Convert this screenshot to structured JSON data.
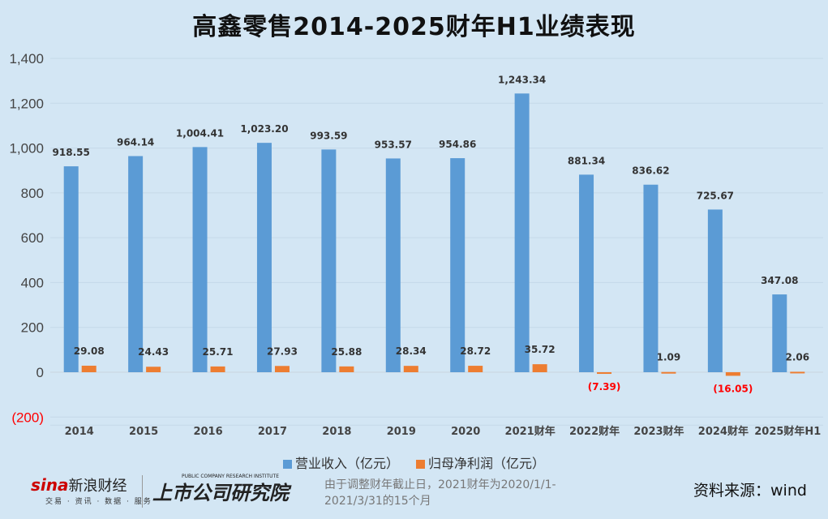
{
  "chart_data": {
    "type": "bar",
    "title": "高鑫零售2014-2025财年H1业绩表现",
    "categories": [
      "2014",
      "2015",
      "2016",
      "2017",
      "2018",
      "2019",
      "2020",
      "2021财年",
      "2022财年",
      "2023财年",
      "2024财年",
      "2025财年H1"
    ],
    "series": [
      {
        "name": "营业收入（亿元）",
        "color": "#5b9bd5",
        "values": [
          918.55,
          964.14,
          1004.41,
          1023.2,
          993.59,
          953.57,
          954.86,
          1243.34,
          881.34,
          836.62,
          725.67,
          347.08
        ],
        "labels": [
          "918.55",
          "964.14",
          "1,004.41",
          "1,023.20",
          "993.59",
          "953.57",
          "954.86",
          "1,243.34",
          "881.34",
          "836.62",
          "725.67",
          "347.08"
        ]
      },
      {
        "name": "归母净利润（亿元）",
        "color": "#ed7d31",
        "values": [
          29.08,
          24.43,
          25.71,
          27.93,
          25.88,
          28.34,
          28.72,
          35.72,
          -7.39,
          1.09,
          -16.05,
          2.06
        ],
        "labels": [
          "29.08",
          "24.43",
          "25.71",
          "27.93",
          "25.88",
          "28.34",
          "28.72",
          "35.72",
          "(7.39)",
          "1.09",
          "(16.05)",
          "2.06"
        ]
      }
    ],
    "ylim": [
      -200,
      1400
    ],
    "yticks": [
      -200,
      0,
      200,
      400,
      600,
      800,
      1000,
      1200,
      1400
    ],
    "ytick_labels": [
      "(200)",
      "0",
      "200",
      "400",
      "600",
      "800",
      "1,000",
      "1,200",
      "1,400"
    ],
    "grid": true,
    "legend": "bottom",
    "negative_label_color": "#ff0000"
  },
  "footer": {
    "logo1": "sina新浪财经",
    "logo1_sub": "交易 · 资讯 · 数据 · 服务",
    "logo2": "上市公司研究院",
    "logo2_en": "PUBLIC COMPANY RESEARCH INSTITUTE",
    "note": "由于调整财年截止日，2021财年为2020/1/1-2021/3/31的15个月",
    "source": "资料来源：wind"
  }
}
